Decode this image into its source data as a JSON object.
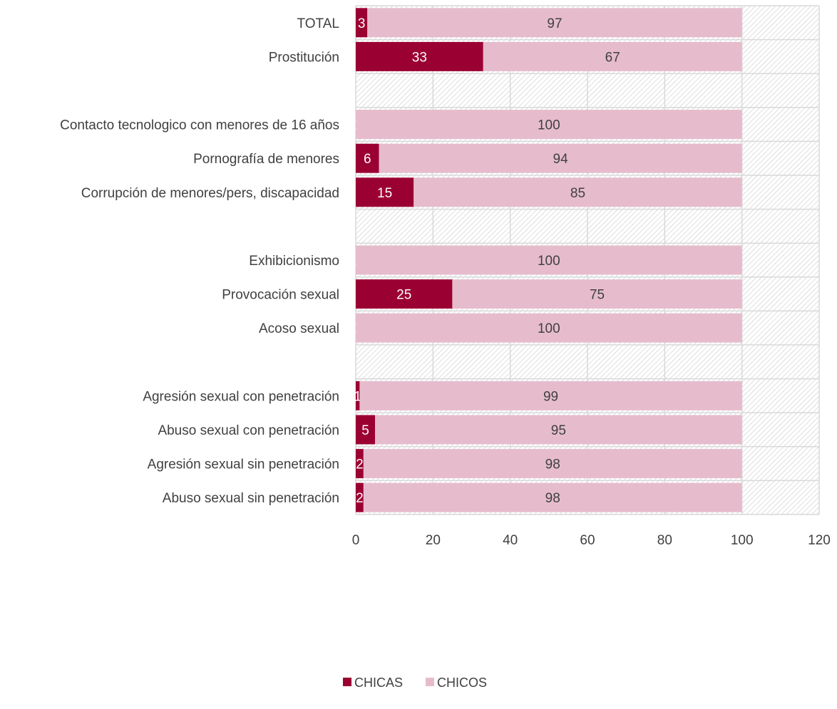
{
  "chart_data": {
    "type": "bar",
    "orientation": "horizontal",
    "stacked": true,
    "categories": [
      "TOTAL",
      "Prostitución",
      "",
      "Contacto tecnologico con menores de 16 años",
      "Pornografía de menores",
      "Corrupción de menores/pers, discapacidad",
      "",
      "Exhibicionismo",
      "Provocación sexual",
      "Acoso sexual",
      "",
      "Agresión sexual con penetración",
      "Abuso sexual con penetración",
      "Agresión sexual sin penetración",
      "Abuso sexual sin penetración"
    ],
    "series": [
      {
        "name": "CHICAS",
        "color": "#9b0033",
        "label_color": "#ffffff",
        "values": [
          3,
          33,
          null,
          0,
          6,
          15,
          null,
          0,
          25,
          0,
          null,
          1,
          5,
          2,
          2
        ]
      },
      {
        "name": "CHICOS",
        "color": "#e6bccd",
        "label_color": "#404040",
        "values": [
          97,
          67,
          null,
          100,
          94,
          85,
          null,
          100,
          75,
          100,
          null,
          99,
          95,
          98,
          98
        ]
      }
    ],
    "xlim": [
      0,
      120
    ],
    "x_ticks": [
      0,
      20,
      40,
      60,
      80,
      100,
      120
    ],
    "grid": true,
    "plot_background": "hatched",
    "legend_position": "bottom-center"
  }
}
